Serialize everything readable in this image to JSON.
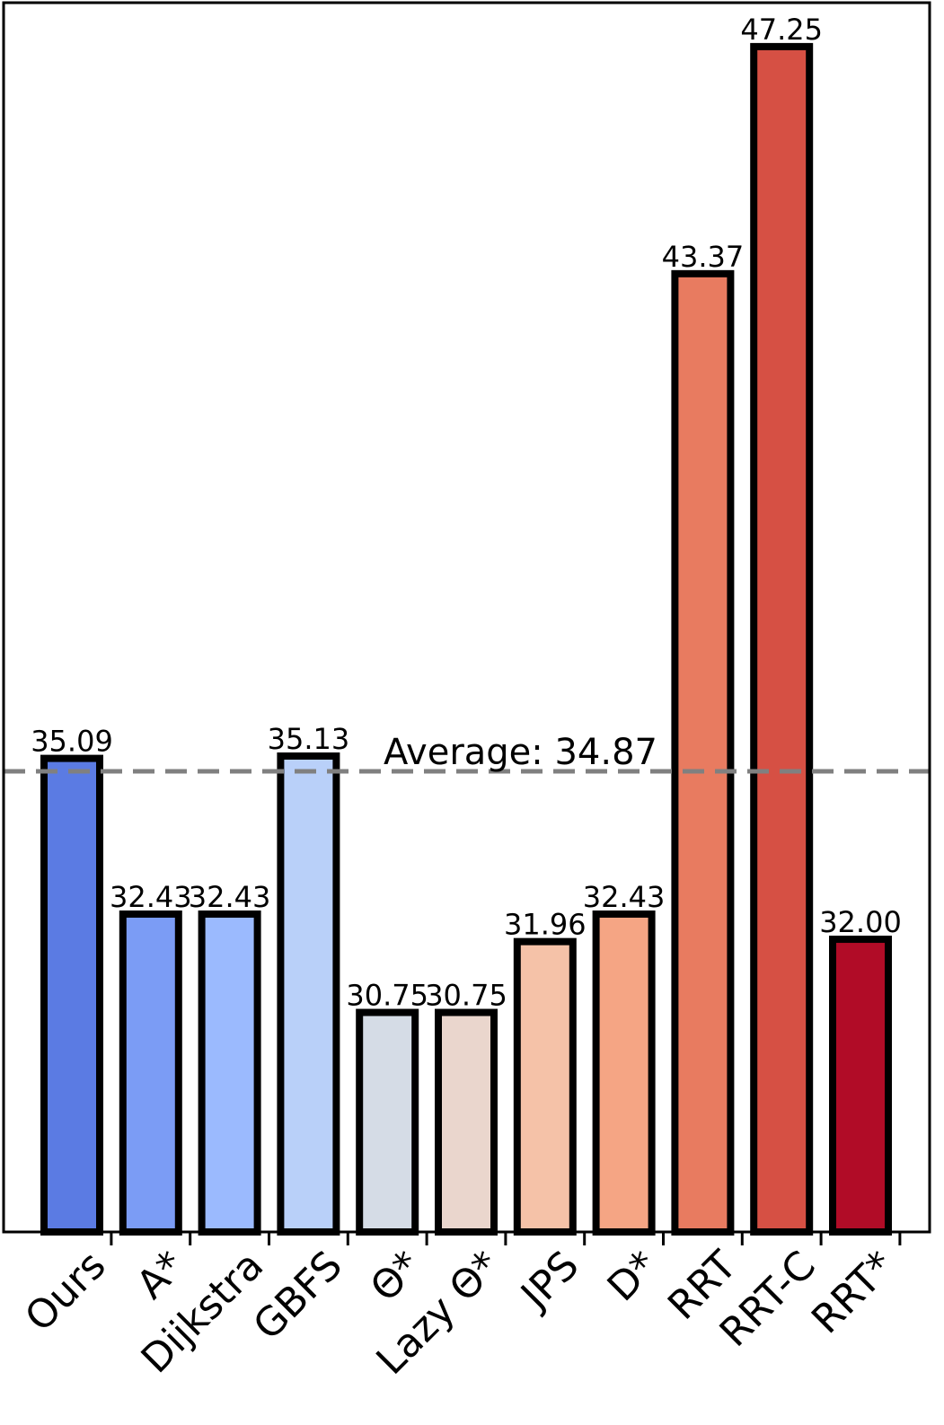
{
  "chart_data": {
    "type": "bar",
    "categories": [
      "Ours",
      "A*",
      "Dijkstra",
      "GBFS",
      "Θ*",
      "Lazy Θ*",
      "JPS",
      "D*",
      "RRT",
      "RRT-C",
      "RRT*"
    ],
    "values": [
      35.09,
      32.43,
      32.43,
      35.13,
      30.75,
      30.75,
      31.96,
      32.43,
      43.37,
      47.25,
      32.0
    ],
    "value_labels": [
      "35.09",
      "32.43",
      "32.43",
      "35.13",
      "30.75",
      "30.75",
      "31.96",
      "32.43",
      "43.37",
      "47.25",
      "32.00"
    ],
    "colors": [
      "#5b7be3",
      "#7b9cf5",
      "#9bbafe",
      "#b9d0f9",
      "#d5dce6",
      "#ead6cd",
      "#f5c2a8",
      "#f5a584",
      "#e87b60",
      "#d65044",
      "#b10c27"
    ],
    "average": {
      "value": 34.87,
      "label": "Average: 34.87",
      "color": "#808080"
    },
    "ylim": [
      27.0,
      48.0
    ],
    "grid": false,
    "title": "",
    "xlabel": "",
    "ylabel": ""
  }
}
